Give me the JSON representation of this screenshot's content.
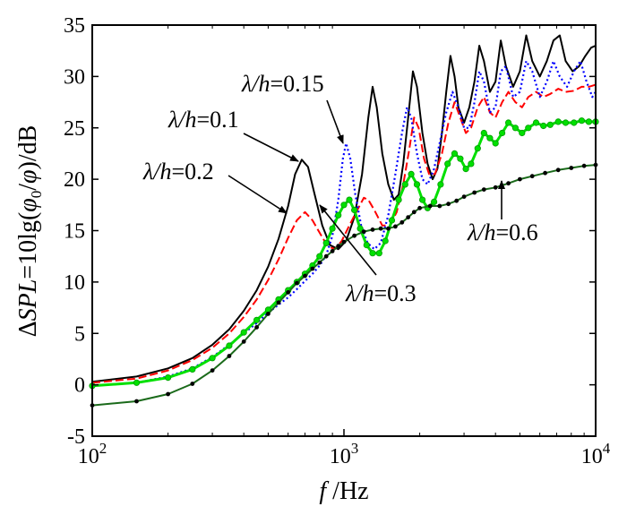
{
  "chart_data": {
    "type": "line",
    "title": "",
    "xlabel": "f /Hz",
    "ylabel": "ΔSPL=10lg(φ0/φ)/dB",
    "xscale": "log",
    "xlim": [
      100,
      10000
    ],
    "ylim": [
      -5,
      35
    ],
    "grid": false,
    "legend": "none",
    "x_ticks": [
      {
        "value": 100,
        "base": "10",
        "exp": "2"
      },
      {
        "value": 1000,
        "base": "10",
        "exp": "3"
      },
      {
        "value": 10000,
        "base": "10",
        "exp": "4"
      }
    ],
    "y_ticks": [
      "-5",
      "0",
      "5",
      "10",
      "15",
      "20",
      "25",
      "30",
      "35"
    ],
    "y_tick_values": [
      -5,
      0,
      5,
      10,
      15,
      20,
      25,
      30,
      35
    ],
    "series": [
      {
        "label": "λ/h=0.1",
        "color": "#000000",
        "style": "solid",
        "points": [
          [
            100,
            0.3
          ],
          [
            150,
            0.8
          ],
          [
            200,
            1.6
          ],
          [
            250,
            2.6
          ],
          [
            300,
            3.9
          ],
          [
            350,
            5.4
          ],
          [
            400,
            7.2
          ],
          [
            450,
            9.2
          ],
          [
            500,
            11.5
          ],
          [
            550,
            14.2
          ],
          [
            600,
            17.4
          ],
          [
            640,
            20.5
          ],
          [
            680,
            21.9
          ],
          [
            720,
            21.2
          ],
          [
            760,
            18.8
          ],
          [
            820,
            15.5
          ],
          [
            880,
            13.6
          ],
          [
            950,
            13.2
          ],
          [
            1020,
            14.0
          ],
          [
            1100,
            16.3
          ],
          [
            1180,
            20.5
          ],
          [
            1250,
            26.0
          ],
          [
            1300,
            29.0
          ],
          [
            1350,
            27.0
          ],
          [
            1420,
            22.5
          ],
          [
            1500,
            19.5
          ],
          [
            1580,
            18.0
          ],
          [
            1650,
            18.5
          ],
          [
            1720,
            21.5
          ],
          [
            1800,
            26.0
          ],
          [
            1880,
            30.5
          ],
          [
            1950,
            29.0
          ],
          [
            2050,
            24.5
          ],
          [
            2150,
            21.5
          ],
          [
            2250,
            20.0
          ],
          [
            2350,
            21.0
          ],
          [
            2450,
            24.5
          ],
          [
            2550,
            28.5
          ],
          [
            2650,
            32.0
          ],
          [
            2750,
            30.0
          ],
          [
            2850,
            27.0
          ],
          [
            3000,
            25.5
          ],
          [
            3150,
            27.0
          ],
          [
            3300,
            29.5
          ],
          [
            3450,
            33.0
          ],
          [
            3600,
            31.5
          ],
          [
            3800,
            28.5
          ],
          [
            4000,
            29.5
          ],
          [
            4200,
            33.5
          ],
          [
            4400,
            31.0
          ],
          [
            4700,
            29.0
          ],
          [
            5000,
            30.5
          ],
          [
            5300,
            34.0
          ],
          [
            5600,
            31.5
          ],
          [
            6000,
            30.0
          ],
          [
            6400,
            31.5
          ],
          [
            6800,
            33.5
          ],
          [
            7200,
            34.0
          ],
          [
            7600,
            31.5
          ],
          [
            8100,
            30.5
          ],
          [
            8600,
            31.0
          ],
          [
            9100,
            32.0
          ],
          [
            9600,
            32.8
          ],
          [
            10000,
            33.0
          ]
        ]
      },
      {
        "label": "λ/h=0.2",
        "color": "#ff0000",
        "style": "dashed",
        "points": [
          [
            100,
            0.2
          ],
          [
            150,
            0.6
          ],
          [
            200,
            1.4
          ],
          [
            250,
            2.4
          ],
          [
            300,
            3.6
          ],
          [
            350,
            5.0
          ],
          [
            400,
            6.6
          ],
          [
            450,
            8.3
          ],
          [
            500,
            10.2
          ],
          [
            550,
            12.2
          ],
          [
            600,
            14.3
          ],
          [
            650,
            16.0
          ],
          [
            700,
            16.8
          ],
          [
            750,
            16.0
          ],
          [
            800,
            14.8
          ],
          [
            860,
            13.5
          ],
          [
            920,
            13.2
          ],
          [
            980,
            14.0
          ],
          [
            1050,
            15.5
          ],
          [
            1130,
            17.0
          ],
          [
            1200,
            18.2
          ],
          [
            1250,
            18.0
          ],
          [
            1320,
            17.0
          ],
          [
            1420,
            15.5
          ],
          [
            1520,
            15.5
          ],
          [
            1620,
            16.8
          ],
          [
            1720,
            19.5
          ],
          [
            1820,
            23.0
          ],
          [
            1900,
            26.0
          ],
          [
            1980,
            25.0
          ],
          [
            2080,
            22.0
          ],
          [
            2180,
            20.5
          ],
          [
            2300,
            20.5
          ],
          [
            2450,
            22.5
          ],
          [
            2600,
            25.5
          ],
          [
            2750,
            27.5
          ],
          [
            2900,
            26.0
          ],
          [
            3050,
            24.5
          ],
          [
            3200,
            25.0
          ],
          [
            3400,
            27.0
          ],
          [
            3600,
            28.0
          ],
          [
            3800,
            26.5
          ],
          [
            4000,
            26.0
          ],
          [
            4250,
            27.5
          ],
          [
            4500,
            28.5
          ],
          [
            4800,
            27.5
          ],
          [
            5100,
            27.0
          ],
          [
            5400,
            28.0
          ],
          [
            5800,
            28.5
          ],
          [
            6200,
            28.0
          ],
          [
            6600,
            28.3
          ],
          [
            7100,
            28.8
          ],
          [
            7600,
            28.5
          ],
          [
            8200,
            28.6
          ],
          [
            8800,
            29.0
          ],
          [
            9400,
            29.0
          ],
          [
            10000,
            29.2
          ]
        ]
      },
      {
        "label": "λ/h=0.15",
        "color": "#0000ff",
        "style": "dotted",
        "points": [
          [
            100,
            -0.1
          ],
          [
            150,
            0.2
          ],
          [
            200,
            0.8
          ],
          [
            250,
            1.6
          ],
          [
            300,
            2.7
          ],
          [
            350,
            3.9
          ],
          [
            400,
            5.0
          ],
          [
            450,
            6.0
          ],
          [
            500,
            7.0
          ],
          [
            550,
            7.8
          ],
          [
            600,
            8.5
          ],
          [
            650,
            9.3
          ],
          [
            700,
            10.1
          ],
          [
            750,
            10.8
          ],
          [
            800,
            11.6
          ],
          [
            850,
            12.6
          ],
          [
            900,
            14.5
          ],
          [
            950,
            18.0
          ],
          [
            990,
            22.0
          ],
          [
            1020,
            23.5
          ],
          [
            1060,
            22.0
          ],
          [
            1110,
            18.5
          ],
          [
            1170,
            15.5
          ],
          [
            1240,
            13.8
          ],
          [
            1320,
            13.2
          ],
          [
            1400,
            13.8
          ],
          [
            1500,
            16.5
          ],
          [
            1600,
            20.5
          ],
          [
            1700,
            24.5
          ],
          [
            1780,
            27.0
          ],
          [
            1850,
            26.0
          ],
          [
            1950,
            22.5
          ],
          [
            2050,
            20.0
          ],
          [
            2150,
            19.5
          ],
          [
            2280,
            21.0
          ],
          [
            2400,
            23.5
          ],
          [
            2550,
            26.5
          ],
          [
            2700,
            28.5
          ],
          [
            2850,
            27.0
          ],
          [
            3000,
            25.0
          ],
          [
            3150,
            25.0
          ],
          [
            3300,
            27.5
          ],
          [
            3450,
            30.5
          ],
          [
            3600,
            29.5
          ],
          [
            3800,
            26.5
          ],
          [
            4000,
            27.0
          ],
          [
            4200,
            30.5
          ],
          [
            4400,
            31.0
          ],
          [
            4700,
            28.0
          ],
          [
            5000,
            28.5
          ],
          [
            5300,
            31.5
          ],
          [
            5600,
            30.5
          ],
          [
            6000,
            28.0
          ],
          [
            6400,
            29.5
          ],
          [
            6800,
            31.5
          ],
          [
            7200,
            30.0
          ],
          [
            7700,
            29.0
          ],
          [
            8200,
            30.5
          ],
          [
            8700,
            31.5
          ],
          [
            9200,
            29.5
          ],
          [
            9700,
            28.0
          ],
          [
            10000,
            28.5
          ]
        ]
      },
      {
        "label": "λ/h=0.3",
        "color": "#00e000",
        "style": "solid-markers",
        "points": [
          [
            100,
            -0.1
          ],
          [
            150,
            0.2
          ],
          [
            200,
            0.7
          ],
          [
            250,
            1.5
          ],
          [
            300,
            2.6
          ],
          [
            350,
            3.8
          ],
          [
            400,
            5.1
          ],
          [
            450,
            6.3
          ],
          [
            500,
            7.3
          ],
          [
            550,
            8.3
          ],
          [
            600,
            9.2
          ],
          [
            650,
            10.0
          ],
          [
            700,
            10.8
          ],
          [
            750,
            11.6
          ],
          [
            800,
            12.5
          ],
          [
            850,
            13.8
          ],
          [
            900,
            15.2
          ],
          [
            950,
            16.5
          ],
          [
            1000,
            17.5
          ],
          [
            1050,
            18.0
          ],
          [
            1100,
            17.0
          ],
          [
            1160,
            15.2
          ],
          [
            1230,
            13.6
          ],
          [
            1300,
            12.8
          ],
          [
            1380,
            12.8
          ],
          [
            1460,
            14.0
          ],
          [
            1550,
            16.0
          ],
          [
            1650,
            18.0
          ],
          [
            1750,
            19.5
          ],
          [
            1850,
            20.5
          ],
          [
            1950,
            19.5
          ],
          [
            2050,
            18.0
          ],
          [
            2150,
            17.2
          ],
          [
            2280,
            17.8
          ],
          [
            2420,
            19.5
          ],
          [
            2580,
            21.5
          ],
          [
            2750,
            22.5
          ],
          [
            2900,
            22.0
          ],
          [
            3050,
            21.0
          ],
          [
            3200,
            21.5
          ],
          [
            3400,
            23.0
          ],
          [
            3600,
            24.5
          ],
          [
            3800,
            24.0
          ],
          [
            4000,
            23.5
          ],
          [
            4250,
            24.5
          ],
          [
            4500,
            25.5
          ],
          [
            4800,
            25.0
          ],
          [
            5100,
            24.5
          ],
          [
            5400,
            25.0
          ],
          [
            5800,
            25.5
          ],
          [
            6200,
            25.2
          ],
          [
            6600,
            25.3
          ],
          [
            7100,
            25.6
          ],
          [
            7600,
            25.5
          ],
          [
            8200,
            25.5
          ],
          [
            8800,
            25.7
          ],
          [
            9400,
            25.6
          ],
          [
            10000,
            25.6
          ]
        ]
      },
      {
        "label": "λ/h=0.6",
        "color": "#1a6a1a",
        "style": "solid-markers",
        "points": [
          [
            100,
            -2.0
          ],
          [
            150,
            -1.6
          ],
          [
            200,
            -0.9
          ],
          [
            250,
            0.1
          ],
          [
            300,
            1.4
          ],
          [
            350,
            2.8
          ],
          [
            400,
            4.2
          ],
          [
            450,
            5.6
          ],
          [
            500,
            6.9
          ],
          [
            550,
            8.0
          ],
          [
            600,
            9.0
          ],
          [
            650,
            9.9
          ],
          [
            700,
            10.6
          ],
          [
            750,
            11.3
          ],
          [
            800,
            11.9
          ],
          [
            850,
            12.5
          ],
          [
            900,
            13.0
          ],
          [
            950,
            13.5
          ],
          [
            1000,
            13.9
          ],
          [
            1100,
            14.5
          ],
          [
            1200,
            14.9
          ],
          [
            1300,
            15.1
          ],
          [
            1400,
            15.2
          ],
          [
            1500,
            15.2
          ],
          [
            1600,
            15.4
          ],
          [
            1700,
            15.8
          ],
          [
            1800,
            16.3
          ],
          [
            1900,
            16.8
          ],
          [
            2000,
            17.2
          ],
          [
            2200,
            17.4
          ],
          [
            2400,
            17.4
          ],
          [
            2600,
            17.6
          ],
          [
            2800,
            17.9
          ],
          [
            3000,
            18.3
          ],
          [
            3300,
            18.7
          ],
          [
            3600,
            19.0
          ],
          [
            4000,
            19.2
          ],
          [
            4500,
            19.6
          ],
          [
            5000,
            20.0
          ],
          [
            5600,
            20.3
          ],
          [
            6300,
            20.6
          ],
          [
            7100,
            20.9
          ],
          [
            8000,
            21.1
          ],
          [
            9000,
            21.3
          ],
          [
            10000,
            21.4
          ]
        ]
      }
    ],
    "annotations": [
      {
        "label": "λ/h=0.15",
        "base": "λ/",
        "var": "h",
        "rest": "=0.15"
      },
      {
        "label": "λ/h=0.1",
        "base": "λ/",
        "var": "h",
        "rest": "=0.1"
      },
      {
        "label": "λ/h=0.2",
        "base": "λ/",
        "var": "h",
        "rest": "=0.2"
      },
      {
        "label": "λ/h=0.3",
        "base": "λ/",
        "var": "h",
        "rest": "=0.3"
      },
      {
        "label": "λ/h=0.6",
        "base": "λ/",
        "var": "h",
        "rest": "=0.6"
      }
    ]
  }
}
